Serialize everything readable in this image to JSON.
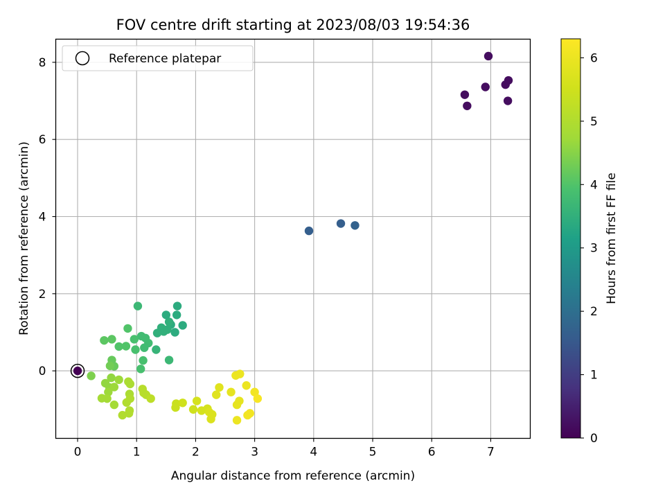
{
  "chart_data": {
    "type": "scatter",
    "title": "FOV centre drift starting at 2023/08/03 19:54:36",
    "xlabel": "Angular distance from reference (arcmin)",
    "ylabel": "Rotation from reference (arcmin)",
    "colorbar_label": "Hours from first FF file",
    "xlim": [
      -0.37,
      7.67
    ],
    "ylim": [
      -1.75,
      8.6
    ],
    "clim": [
      0,
      6.3
    ],
    "xticks": [
      0,
      1,
      2,
      3,
      4,
      5,
      6,
      7
    ],
    "yticks": [
      0,
      2,
      4,
      6,
      8
    ],
    "cticks": [
      0,
      1,
      2,
      3,
      4,
      5,
      6
    ],
    "grid": true,
    "legend": {
      "position": "top-left",
      "entries": [
        "Reference platepar"
      ]
    },
    "reference_point": [
      0,
      0
    ],
    "colormap": "viridis",
    "points": [
      {
        "x": 0.0,
        "y": 0.0,
        "h": 0.0
      },
      {
        "x": 6.56,
        "y": 7.16,
        "h": 0.2
      },
      {
        "x": 6.6,
        "y": 6.87,
        "h": 0.2
      },
      {
        "x": 6.91,
        "y": 7.36,
        "h": 0.2
      },
      {
        "x": 6.96,
        "y": 8.16,
        "h": 0.2
      },
      {
        "x": 7.25,
        "y": 7.42,
        "h": 0.2
      },
      {
        "x": 7.3,
        "y": 7.53,
        "h": 0.2
      },
      {
        "x": 7.29,
        "y": 7.0,
        "h": 0.2
      },
      {
        "x": 3.92,
        "y": 3.63,
        "h": 1.65
      },
      {
        "x": 4.46,
        "y": 3.82,
        "h": 1.65
      },
      {
        "x": 4.7,
        "y": 3.77,
        "h": 1.7
      },
      {
        "x": 1.78,
        "y": 1.18,
        "h": 3.4
      },
      {
        "x": 1.69,
        "y": 1.68,
        "h": 3.4
      },
      {
        "x": 1.68,
        "y": 1.45,
        "h": 3.4
      },
      {
        "x": 1.65,
        "y": 1.0,
        "h": 3.4
      },
      {
        "x": 1.58,
        "y": 1.2,
        "h": 3.4
      },
      {
        "x": 1.55,
        "y": 1.27,
        "h": 3.5
      },
      {
        "x": 1.5,
        "y": 1.45,
        "h": 3.4
      },
      {
        "x": 1.46,
        "y": 1.02,
        "h": 3.5
      },
      {
        "x": 1.42,
        "y": 1.12,
        "h": 3.5
      },
      {
        "x": 1.35,
        "y": 0.98,
        "h": 3.5
      },
      {
        "x": 1.33,
        "y": 0.55,
        "h": 3.6
      },
      {
        "x": 1.52,
        "y": 1.07,
        "h": 3.5
      },
      {
        "x": 1.55,
        "y": 0.28,
        "h": 3.7
      },
      {
        "x": 1.02,
        "y": 1.68,
        "h": 3.7
      },
      {
        "x": 1.08,
        "y": 0.9,
        "h": 3.8
      },
      {
        "x": 1.15,
        "y": 0.85,
        "h": 3.8
      },
      {
        "x": 1.2,
        "y": 0.72,
        "h": 3.8
      },
      {
        "x": 1.13,
        "y": 0.6,
        "h": 3.8
      },
      {
        "x": 0.96,
        "y": 0.82,
        "h": 3.9
      },
      {
        "x": 0.98,
        "y": 0.55,
        "h": 3.9
      },
      {
        "x": 1.07,
        "y": 0.05,
        "h": 3.9
      },
      {
        "x": 1.11,
        "y": 0.27,
        "h": 3.9
      },
      {
        "x": 0.85,
        "y": 1.1,
        "h": 4.0
      },
      {
        "x": 0.82,
        "y": 0.64,
        "h": 4.0
      },
      {
        "x": 0.7,
        "y": 0.63,
        "h": 4.0
      },
      {
        "x": 0.58,
        "y": 0.82,
        "h": 4.1
      },
      {
        "x": 0.45,
        "y": 0.79,
        "h": 4.1
      },
      {
        "x": 0.58,
        "y": 0.28,
        "h": 4.2
      },
      {
        "x": 0.62,
        "y": 0.12,
        "h": 4.2
      },
      {
        "x": 0.55,
        "y": 0.13,
        "h": 4.3
      },
      {
        "x": 0.23,
        "y": -0.13,
        "h": 4.4
      },
      {
        "x": 0.57,
        "y": -0.18,
        "h": 4.6
      },
      {
        "x": 0.47,
        "y": -0.32,
        "h": 4.6
      },
      {
        "x": 0.54,
        "y": -0.43,
        "h": 4.6
      },
      {
        "x": 0.62,
        "y": -0.42,
        "h": 4.7
      },
      {
        "x": 0.7,
        "y": -0.23,
        "h": 4.7
      },
      {
        "x": 0.52,
        "y": -0.55,
        "h": 4.7
      },
      {
        "x": 0.41,
        "y": -0.71,
        "h": 4.8
      },
      {
        "x": 0.5,
        "y": -0.72,
        "h": 4.8
      },
      {
        "x": 0.62,
        "y": -0.88,
        "h": 4.8
      },
      {
        "x": 0.86,
        "y": -0.28,
        "h": 4.9
      },
      {
        "x": 0.89,
        "y": -0.34,
        "h": 4.9
      },
      {
        "x": 0.88,
        "y": -0.6,
        "h": 4.9
      },
      {
        "x": 0.89,
        "y": -0.72,
        "h": 5.0
      },
      {
        "x": 0.83,
        "y": -0.82,
        "h": 5.0
      },
      {
        "x": 0.88,
        "y": -1.03,
        "h": 5.0
      },
      {
        "x": 0.87,
        "y": -1.1,
        "h": 5.0
      },
      {
        "x": 0.76,
        "y": -1.15,
        "h": 5.0
      },
      {
        "x": 1.1,
        "y": -0.47,
        "h": 5.1
      },
      {
        "x": 1.12,
        "y": -0.57,
        "h": 5.1
      },
      {
        "x": 1.16,
        "y": -0.62,
        "h": 5.1
      },
      {
        "x": 1.24,
        "y": -0.72,
        "h": 5.2
      },
      {
        "x": 1.67,
        "y": -0.85,
        "h": 5.4
      },
      {
        "x": 1.66,
        "y": -0.95,
        "h": 5.4
      },
      {
        "x": 1.78,
        "y": -0.83,
        "h": 5.5
      },
      {
        "x": 1.96,
        "y": -1.0,
        "h": 5.5
      },
      {
        "x": 2.02,
        "y": -0.78,
        "h": 5.6
      },
      {
        "x": 2.1,
        "y": -1.03,
        "h": 5.6
      },
      {
        "x": 2.2,
        "y": -0.98,
        "h": 5.6
      },
      {
        "x": 2.23,
        "y": -1.07,
        "h": 5.7
      },
      {
        "x": 2.28,
        "y": -1.13,
        "h": 5.7
      },
      {
        "x": 2.26,
        "y": -1.25,
        "h": 5.7
      },
      {
        "x": 2.35,
        "y": -0.62,
        "h": 5.8
      },
      {
        "x": 2.4,
        "y": -0.43,
        "h": 5.8
      },
      {
        "x": 2.6,
        "y": -0.55,
        "h": 5.9
      },
      {
        "x": 2.68,
        "y": -0.12,
        "h": 6.0
      },
      {
        "x": 2.75,
        "y": -0.08,
        "h": 6.0
      },
      {
        "x": 2.74,
        "y": -0.78,
        "h": 5.9
      },
      {
        "x": 2.7,
        "y": -0.88,
        "h": 5.9
      },
      {
        "x": 2.7,
        "y": -1.28,
        "h": 6.0
      },
      {
        "x": 2.86,
        "y": -0.38,
        "h": 6.0
      },
      {
        "x": 2.88,
        "y": -1.15,
        "h": 6.1
      },
      {
        "x": 2.92,
        "y": -1.1,
        "h": 6.1
      },
      {
        "x": 3.0,
        "y": -0.55,
        "h": 6.1
      },
      {
        "x": 3.05,
        "y": -0.72,
        "h": 6.2
      }
    ]
  }
}
